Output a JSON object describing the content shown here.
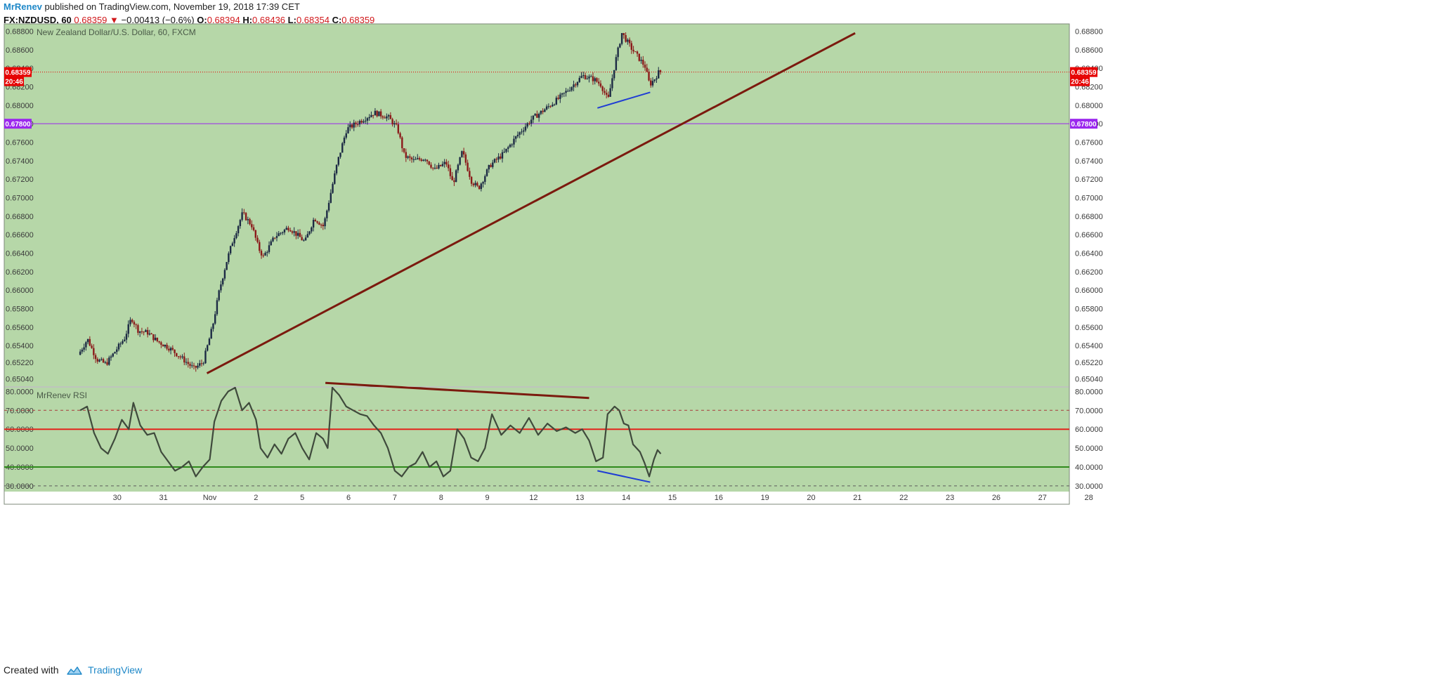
{
  "header": {
    "author": "MrRenev",
    "published_text": "published on TradingView.com, November 19, 2018 17:39 CET",
    "symbol": "FX:NZDUSD, 60",
    "last": "0.68359",
    "change_arrow": "▼",
    "change": "−0.00413 (−0.6%)",
    "o_label": "O:",
    "o_value": "0.68394",
    "h_label": "H:",
    "h_value": "0.68436",
    "l_label": "L:",
    "l_value": "0.68354",
    "c_label": "C:",
    "c_value": "0.68359"
  },
  "footer": {
    "created_with": "Created with",
    "brand": "TradingView",
    "logo_icon": "tradingview-logo-icon"
  },
  "colors": {
    "pane_bg": "#b6d7a8",
    "candle_up": "#1c2a44",
    "candle_down": "#8b1a1a",
    "trendline": "#7b1a0e",
    "divergence": "#1f3dd4",
    "hline_purple": "#9b27ee",
    "last_price": "#e60000",
    "rsi_line": "#3f4a3c",
    "rsi_60": "#e3231b",
    "rsi_40": "#2f8a1c"
  },
  "chart_data": {
    "type": "candlestick",
    "title": "New Zealand Dollar/U.S. Dollar, 60, FXCM",
    "timeframe": "60",
    "price_axis": {
      "ylim": [
        0.6496,
        0.6888
      ],
      "ticks": [
        "0.68800",
        "0.68600",
        "0.68400",
        "0.68200",
        "0.68000",
        "0.67800",
        "0.67600",
        "0.67400",
        "0.67200",
        "0.67000",
        "0.66800",
        "0.66600",
        "0.66400",
        "0.66200",
        "0.66000",
        "0.65800",
        "0.65600",
        "0.65400",
        "0.65220",
        "0.65040"
      ],
      "last_price_label": "0.68359",
      "countdown_label": "20:46",
      "hline_label": "0.67800",
      "hline_value": 0.678
    },
    "x_axis": {
      "date_labels": [
        "30",
        "31",
        "Nov",
        "2",
        "5",
        "6",
        "7",
        "8",
        "9",
        "12",
        "13",
        "14",
        "15",
        "16",
        "19",
        "20",
        "21",
        "22",
        "23",
        "26",
        "27",
        "28"
      ],
      "date_index": [
        -2,
        -1,
        0,
        1,
        2,
        3,
        4,
        5,
        6,
        7,
        8,
        9,
        10,
        11,
        12,
        13,
        14,
        15,
        16,
        17,
        18,
        19
      ]
    },
    "price_path": [
      [
        -2.8,
        0.653
      ],
      [
        -2.6,
        0.6547
      ],
      [
        -2.4,
        0.6525
      ],
      [
        -2.2,
        0.652
      ],
      [
        -2.0,
        0.6534
      ],
      [
        -1.8,
        0.6548
      ],
      [
        -1.65,
        0.657
      ],
      [
        -1.5,
        0.6556
      ],
      [
        -1.3,
        0.6554
      ],
      [
        -1.1,
        0.6545
      ],
      [
        -0.85,
        0.6538
      ],
      [
        -0.6,
        0.6528
      ],
      [
        -0.3,
        0.6515
      ],
      [
        -0.1,
        0.6522
      ],
      [
        0.1,
        0.656
      ],
      [
        0.25,
        0.66
      ],
      [
        0.4,
        0.663
      ],
      [
        0.55,
        0.6655
      ],
      [
        0.75,
        0.6683
      ],
      [
        0.95,
        0.667
      ],
      [
        1.1,
        0.6645
      ],
      [
        1.2,
        0.6636
      ],
      [
        1.45,
        0.6658
      ],
      [
        1.75,
        0.6668
      ],
      [
        2.1,
        0.6652
      ],
      [
        2.3,
        0.6678
      ],
      [
        2.5,
        0.6669
      ],
      [
        2.8,
        0.6738
      ],
      [
        3.0,
        0.6774
      ],
      [
        3.3,
        0.6783
      ],
      [
        3.6,
        0.6792
      ],
      [
        3.9,
        0.6787
      ],
      [
        4.1,
        0.6775
      ],
      [
        4.25,
        0.6745
      ],
      [
        4.45,
        0.674
      ],
      [
        4.7,
        0.6743
      ],
      [
        4.9,
        0.673
      ],
      [
        5.15,
        0.6738
      ],
      [
        5.3,
        0.6715
      ],
      [
        5.5,
        0.675
      ],
      [
        5.7,
        0.6718
      ],
      [
        5.85,
        0.671
      ],
      [
        6.1,
        0.6735
      ],
      [
        6.4,
        0.6748
      ],
      [
        6.7,
        0.6768
      ],
      [
        7.0,
        0.6785
      ],
      [
        7.35,
        0.6798
      ],
      [
        7.65,
        0.681
      ],
      [
        7.9,
        0.6822
      ],
      [
        8.1,
        0.6832
      ],
      [
        8.35,
        0.6828
      ],
      [
        8.5,
        0.6822
      ],
      [
        8.65,
        0.6805
      ],
      [
        8.8,
        0.6845
      ],
      [
        8.95,
        0.6878
      ],
      [
        9.15,
        0.6862
      ],
      [
        9.3,
        0.6852
      ],
      [
        9.45,
        0.6842
      ],
      [
        9.55,
        0.6822
      ],
      [
        9.65,
        0.6828
      ],
      [
        9.75,
        0.6836
      ]
    ],
    "trendlines": [
      {
        "from": [
          -0.06,
          0.651
        ],
        "to": [
          13.95,
          0.6878
        ],
        "color": "trendline"
      },
      {
        "from": [
          8.38,
          0.6797
        ],
        "to": [
          9.52,
          0.6814
        ],
        "color": "divergence"
      }
    ],
    "rsi": {
      "name": "MrRenev RSI",
      "ylim": [
        27,
        82
      ],
      "ticks": [
        "80.0000",
        "70.0000",
        "60.0000",
        "50.0000",
        "40.0000",
        "30.0000"
      ],
      "levels": [
        {
          "value": 70,
          "style": "dashed",
          "color": "#a83a3a"
        },
        {
          "value": 60,
          "style": "solid",
          "color": "rsi_60"
        },
        {
          "value": 40,
          "style": "solid",
          "color": "rsi_40"
        },
        {
          "value": 30,
          "style": "dashed",
          "color": "#5b5b5b"
        }
      ],
      "values": [
        [
          -2.8,
          70
        ],
        [
          -2.65,
          72
        ],
        [
          -2.5,
          58
        ],
        [
          -2.35,
          50
        ],
        [
          -2.2,
          47
        ],
        [
          -2.05,
          55
        ],
        [
          -1.9,
          65
        ],
        [
          -1.75,
          60
        ],
        [
          -1.65,
          74
        ],
        [
          -1.5,
          62
        ],
        [
          -1.35,
          57
        ],
        [
          -1.2,
          58
        ],
        [
          -1.05,
          48
        ],
        [
          -0.9,
          43
        ],
        [
          -0.75,
          38
        ],
        [
          -0.6,
          40
        ],
        [
          -0.45,
          43
        ],
        [
          -0.3,
          35
        ],
        [
          -0.15,
          40
        ],
        [
          0.0,
          44
        ],
        [
          0.1,
          64
        ],
        [
          0.25,
          75
        ],
        [
          0.4,
          80
        ],
        [
          0.55,
          82
        ],
        [
          0.7,
          70
        ],
        [
          0.85,
          74
        ],
        [
          1.0,
          65
        ],
        [
          1.1,
          50
        ],
        [
          1.25,
          45
        ],
        [
          1.4,
          52
        ],
        [
          1.55,
          47
        ],
        [
          1.7,
          55
        ],
        [
          1.85,
          58
        ],
        [
          2.0,
          50
        ],
        [
          2.15,
          44
        ],
        [
          2.3,
          58
        ],
        [
          2.45,
          55
        ],
        [
          2.55,
          50
        ],
        [
          2.65,
          82
        ],
        [
          2.8,
          78
        ],
        [
          2.95,
          72
        ],
        [
          3.1,
          70
        ],
        [
          3.25,
          68
        ],
        [
          3.4,
          67
        ],
        [
          3.55,
          62
        ],
        [
          3.7,
          58
        ],
        [
          3.85,
          50
        ],
        [
          4.0,
          38
        ],
        [
          4.15,
          35
        ],
        [
          4.3,
          40
        ],
        [
          4.45,
          42
        ],
        [
          4.6,
          48
        ],
        [
          4.75,
          40
        ],
        [
          4.9,
          43
        ],
        [
          5.05,
          35
        ],
        [
          5.2,
          38
        ],
        [
          5.35,
          60
        ],
        [
          5.5,
          55
        ],
        [
          5.65,
          45
        ],
        [
          5.8,
          43
        ],
        [
          5.95,
          50
        ],
        [
          6.1,
          68
        ],
        [
          6.3,
          57
        ],
        [
          6.5,
          62
        ],
        [
          6.7,
          58
        ],
        [
          6.9,
          66
        ],
        [
          7.1,
          57
        ],
        [
          7.3,
          63
        ],
        [
          7.5,
          59
        ],
        [
          7.7,
          61
        ],
        [
          7.9,
          58
        ],
        [
          8.05,
          60
        ],
        [
          8.2,
          54
        ],
        [
          8.35,
          43
        ],
        [
          8.5,
          45
        ],
        [
          8.6,
          68
        ],
        [
          8.75,
          72
        ],
        [
          8.85,
          70
        ],
        [
          8.95,
          63
        ],
        [
          9.05,
          62
        ],
        [
          9.15,
          52
        ],
        [
          9.3,
          48
        ],
        [
          9.4,
          42
        ],
        [
          9.5,
          35
        ],
        [
          9.6,
          44
        ],
        [
          9.68,
          49
        ],
        [
          9.75,
          47
        ]
      ],
      "divergence_lines": [
        {
          "from": [
            2.5,
            84.5
          ],
          "to": [
            8.2,
            76.5
          ],
          "color": "trendline"
        },
        {
          "from": [
            8.38,
            38
          ],
          "to": [
            9.52,
            32
          ],
          "color": "divergence"
        }
      ]
    }
  }
}
